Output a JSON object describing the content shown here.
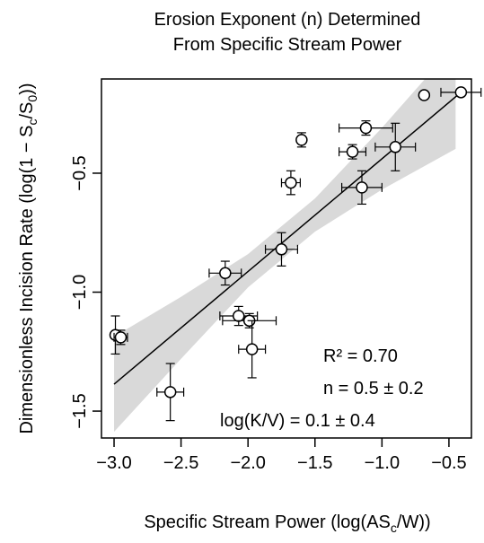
{
  "chart_data": {
    "type": "scatter",
    "title": [
      "Erosion Exponent (n) Determined",
      "From Specific Stream Power"
    ],
    "x_label": [
      {
        "text": "Specific Stream Power (log(AS"
      },
      {
        "text": "c",
        "sub": true
      },
      {
        "text": "/W))"
      }
    ],
    "y_label": [
      {
        "text": "Dimensionless Incision Rate (log(1 − S"
      },
      {
        "text": "c",
        "sub": true
      },
      {
        "text": "/S"
      },
      {
        "text": "0",
        "sub": true
      },
      {
        "text": "))"
      }
    ],
    "annotations": [
      "R² = 0.70",
      "n = 0.5 ± 0.2",
      "log(K/V) = 0.1 ± 0.4"
    ],
    "xlim": [
      -3.094,
      -0.332
    ],
    "ylim": [
      -1.613,
      -0.104
    ],
    "xticks": [
      {
        "value": -3.0,
        "label": "−3.0"
      },
      {
        "value": -2.5,
        "label": "−2.5"
      },
      {
        "value": -2.0,
        "label": "−2.0"
      },
      {
        "value": -1.5,
        "label": "−1.5"
      },
      {
        "value": -1.0,
        "label": "−1.0"
      },
      {
        "value": -0.5,
        "label": "−0.5"
      }
    ],
    "yticks": [
      {
        "value": -0.5,
        "label": "−0.5"
      },
      {
        "value": -1.0,
        "label": "−1.0"
      },
      {
        "value": -1.5,
        "label": "−1.5"
      }
    ],
    "x": [
      -0.685,
      -0.41,
      -1.12,
      -1.6,
      -1.22,
      -0.9,
      -1.68,
      -1.15,
      -1.75,
      -2.17,
      -2.07,
      -1.99,
      -1.97,
      -2.99,
      -2.95,
      -2.58
    ],
    "values": [
      -0.172,
      -0.16,
      -0.31,
      -0.36,
      -0.41,
      -0.39,
      -0.54,
      -0.56,
      -0.82,
      -0.92,
      -1.1,
      -1.12,
      -1.24,
      -1.18,
      -1.19,
      -1.42
    ],
    "xerr": [
      0,
      0.15,
      0.2,
      0,
      0.1,
      0.15,
      0.07,
      0.15,
      0.12,
      0.12,
      0.14,
      0.2,
      0.1,
      0,
      0.05,
      0.1
    ],
    "yerr": [
      0,
      0,
      0.03,
      0.03,
      0.03,
      0.1,
      0.05,
      0.07,
      0.07,
      0.05,
      0.04,
      0.03,
      0.12,
      0.08,
      0.03,
      0.12
    ],
    "fit": {
      "x": [
        -3.0,
        -0.41
      ],
      "values": [
        -1.387,
        -0.16
      ]
    },
    "band": {
      "x": [
        -3.0,
        -2.5,
        -2.0,
        -1.5,
        -1.0,
        -0.45
      ],
      "upper": [
        -1.187,
        -1.02,
        -0.84,
        -0.606,
        -0.309,
        0.042
      ],
      "lower": [
        -1.587,
        -1.28,
        -0.98,
        -0.746,
        -0.569,
        -0.398
      ],
      "color": "#d9d9d9"
    },
    "color": "#000000"
  }
}
